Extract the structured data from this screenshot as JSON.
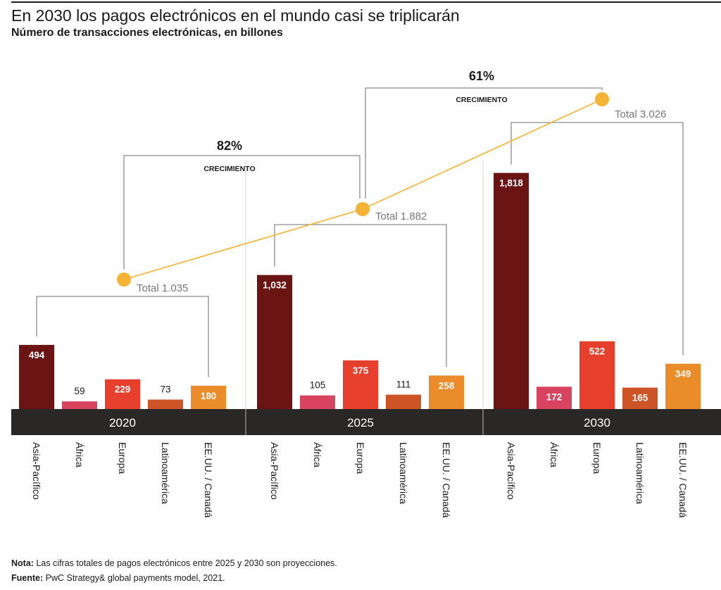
{
  "title": "En 2030 los pagos electrónicos en el mundo casi se triplicarán",
  "subtitle": "Número de transacciones electrónicas, en billones",
  "chart_data": {
    "type": "bar",
    "categories": [
      "Asia-Pacífico",
      "África",
      "Europa",
      "Latinoamérica",
      "EE.UU. / Canadá"
    ],
    "groups": [
      {
        "year": "2020",
        "values": [
          494,
          59,
          229,
          73,
          180
        ],
        "labels": [
          "494",
          "59",
          "229",
          "73",
          "180"
        ],
        "total": 1035,
        "total_label": "Total 1.035"
      },
      {
        "year": "2025",
        "values": [
          1032,
          105,
          375,
          111,
          258
        ],
        "labels": [
          "1,032",
          "105",
          "375",
          "111",
          "258"
        ],
        "total": 1882,
        "total_label": "Total 1.882"
      },
      {
        "year": "2030",
        "values": [
          1818,
          172,
          522,
          165,
          349
        ],
        "labels": [
          "1,818",
          "172",
          "522",
          "165",
          "349"
        ],
        "total": 3026,
        "total_label": "Total 3.026"
      }
    ],
    "growth": [
      {
        "from": "2020",
        "to": "2025",
        "value": "82%",
        "label": "CRECIMIENTO"
      },
      {
        "from": "2025",
        "to": "2030",
        "value": "61%",
        "label": "CRECIMIENTO"
      }
    ],
    "colors": [
      "#6b1414",
      "#d8435f",
      "#e6402d",
      "#cc5427",
      "#eb8c2a"
    ],
    "total_line_color": "#f5b335",
    "band_color": "#2a2727",
    "bracket_color": "#8c8c8c",
    "total_label_color": "#777777"
  },
  "notes": {
    "nota_label": "Nota:",
    "nota_text": " Las cifras totales de pagos electrónicos entre 2025 y 2030 son proyecciones.",
    "fuente_label": "Fuente:",
    "fuente_text": " PwC Strategy& global payments model, 2021."
  }
}
